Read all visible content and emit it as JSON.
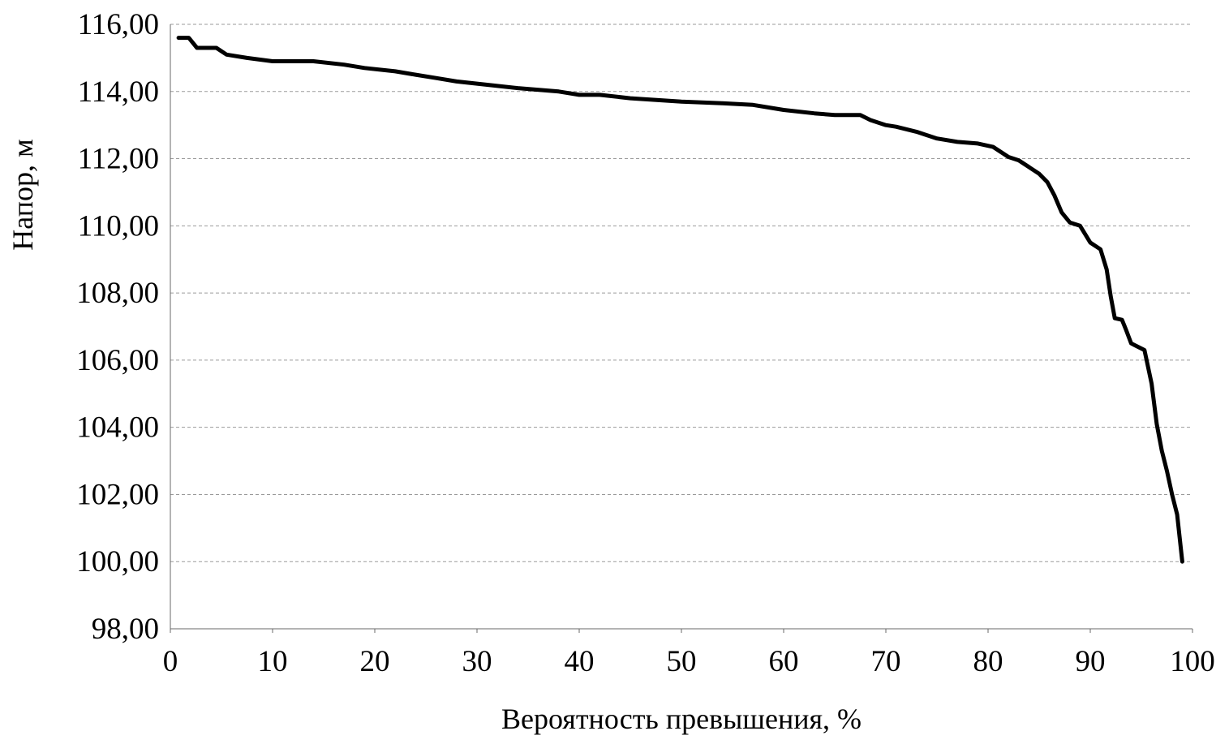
{
  "chart_data": {
    "type": "line",
    "xlabel": "Вероятность превышения, %",
    "ylabel": "Напор, м",
    "xlim": [
      0,
      100
    ],
    "ylim": [
      98,
      116
    ],
    "x_ticks": [
      "0",
      "10",
      "20",
      "30",
      "40",
      "50",
      "60",
      "70",
      "80",
      "90",
      "100"
    ],
    "y_ticks": [
      "98,00",
      "100,00",
      "102,00",
      "104,00",
      "106,00",
      "108,00",
      "110,00",
      "112,00",
      "114,00",
      "116,00"
    ],
    "grid": "horizontal",
    "series_color": "#000000",
    "series": [
      {
        "x": [
          0.8,
          1.8,
          2.6,
          4.5,
          5.5,
          7.5,
          10,
          14,
          17,
          19,
          22,
          24,
          26,
          28,
          31,
          34,
          38,
          40,
          42,
          45,
          50,
          54,
          57,
          60,
          63,
          65,
          67.5,
          68.5,
          70,
          71,
          73,
          75,
          77,
          79,
          80.5,
          82,
          83,
          84,
          85,
          85.8,
          86.5,
          87.2,
          88,
          89,
          90,
          91,
          91.6,
          92,
          92.4,
          93.1,
          93.5,
          94,
          95.3,
          96,
          96.5,
          97,
          97.5,
          98,
          98.5,
          99
        ],
        "y": [
          115.6,
          115.6,
          115.3,
          115.3,
          115.1,
          115.0,
          114.9,
          114.9,
          114.8,
          114.7,
          114.6,
          114.5,
          114.4,
          114.3,
          114.2,
          114.1,
          114.0,
          113.9,
          113.9,
          113.8,
          113.7,
          113.65,
          113.6,
          113.45,
          113.35,
          113.3,
          113.3,
          113.15,
          113.0,
          112.95,
          112.8,
          112.6,
          112.5,
          112.45,
          112.35,
          112.05,
          111.95,
          111.75,
          111.55,
          111.3,
          110.9,
          110.4,
          110.1,
          110.0,
          109.5,
          109.3,
          108.7,
          107.9,
          107.25,
          107.2,
          106.9,
          106.5,
          106.3,
          105.3,
          104.1,
          103.3,
          102.7,
          102.0,
          101.4,
          100.0
        ]
      }
    ]
  }
}
